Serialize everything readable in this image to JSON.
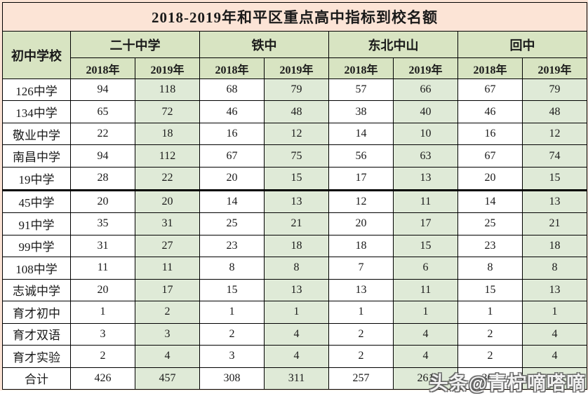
{
  "chart_data": {
    "type": "table",
    "title": "2018-2019年和平区重点高中指标到校名额",
    "corner_header": "初中学校",
    "group_headers": [
      "二十中学",
      "铁中",
      "东北中山",
      "回中"
    ],
    "year_headers": [
      "2018年",
      "2019年"
    ],
    "rows": [
      {
        "school": "126中学",
        "values": [
          94,
          118,
          68,
          79,
          57,
          66,
          67,
          79
        ]
      },
      {
        "school": "134中学",
        "values": [
          65,
          72,
          46,
          48,
          38,
          40,
          46,
          48
        ]
      },
      {
        "school": "敬业中学",
        "values": [
          22,
          18,
          16,
          12,
          14,
          10,
          16,
          12
        ]
      },
      {
        "school": "南昌中学",
        "values": [
          94,
          112,
          67,
          75,
          56,
          63,
          67,
          74
        ]
      },
      {
        "school": "19中学",
        "values": [
          28,
          22,
          20,
          15,
          17,
          13,
          20,
          15
        ]
      },
      {
        "school": "45中学",
        "values": [
          20,
          20,
          14,
          13,
          12,
          11,
          14,
          13
        ]
      },
      {
        "school": "91中学",
        "values": [
          35,
          31,
          25,
          21,
          20,
          17,
          25,
          21
        ]
      },
      {
        "school": "99中学",
        "values": [
          31,
          27,
          23,
          18,
          18,
          15,
          23,
          18
        ]
      },
      {
        "school": "108中学",
        "values": [
          11,
          11,
          8,
          8,
          7,
          6,
          8,
          8
        ]
      },
      {
        "school": "志诚中学",
        "values": [
          20,
          17,
          15,
          13,
          13,
          11,
          15,
          13
        ]
      },
      {
        "school": "育才初中",
        "values": [
          1,
          2,
          1,
          1,
          1,
          1,
          1,
          1
        ]
      },
      {
        "school": "育才双语",
        "values": [
          3,
          3,
          2,
          4,
          2,
          4,
          2,
          4
        ]
      },
      {
        "school": "育才实验",
        "values": [
          2,
          4,
          3,
          4,
          2,
          4,
          2,
          4
        ]
      },
      {
        "school": "合计",
        "values": [
          426,
          457,
          308,
          311,
          257,
          261,
          306,
          310
        ]
      }
    ]
  },
  "watermark": {
    "text": "头条@青柠嘀嗒嘀"
  },
  "colors": {
    "title_bg": "#fce4d6",
    "header_green": "#d8e4c2",
    "cell_green": "#dfead7",
    "cell_white": "#ffffff",
    "border": "#000000",
    "text": "#1a1a1a",
    "watermark_text": "#ffffff"
  }
}
